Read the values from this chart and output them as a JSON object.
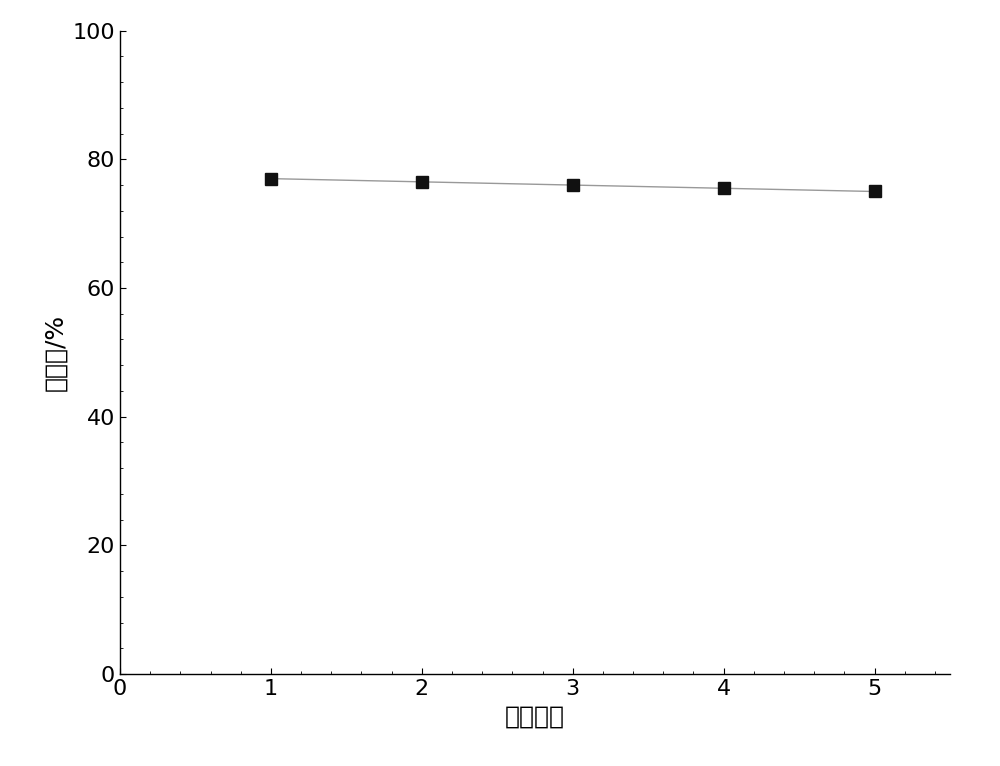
{
  "x": [
    1,
    2,
    3,
    4,
    5
  ],
  "y": [
    77.0,
    76.5,
    76.0,
    75.5,
    75.0
  ],
  "xlabel": "循环次数",
  "ylabel": "降解率/%",
  "xlim": [
    0,
    5.5
  ],
  "ylim": [
    0,
    100
  ],
  "xticks": [
    0,
    1,
    2,
    3,
    4,
    5
  ],
  "yticks": [
    0,
    20,
    40,
    60,
    80,
    100
  ],
  "line_color": "#999999",
  "marker_color": "#111111",
  "marker": "s",
  "marker_size": 9,
  "line_width": 1.0,
  "background_color": "#ffffff",
  "xlabel_fontsize": 18,
  "ylabel_fontsize": 18,
  "tick_fontsize": 16
}
